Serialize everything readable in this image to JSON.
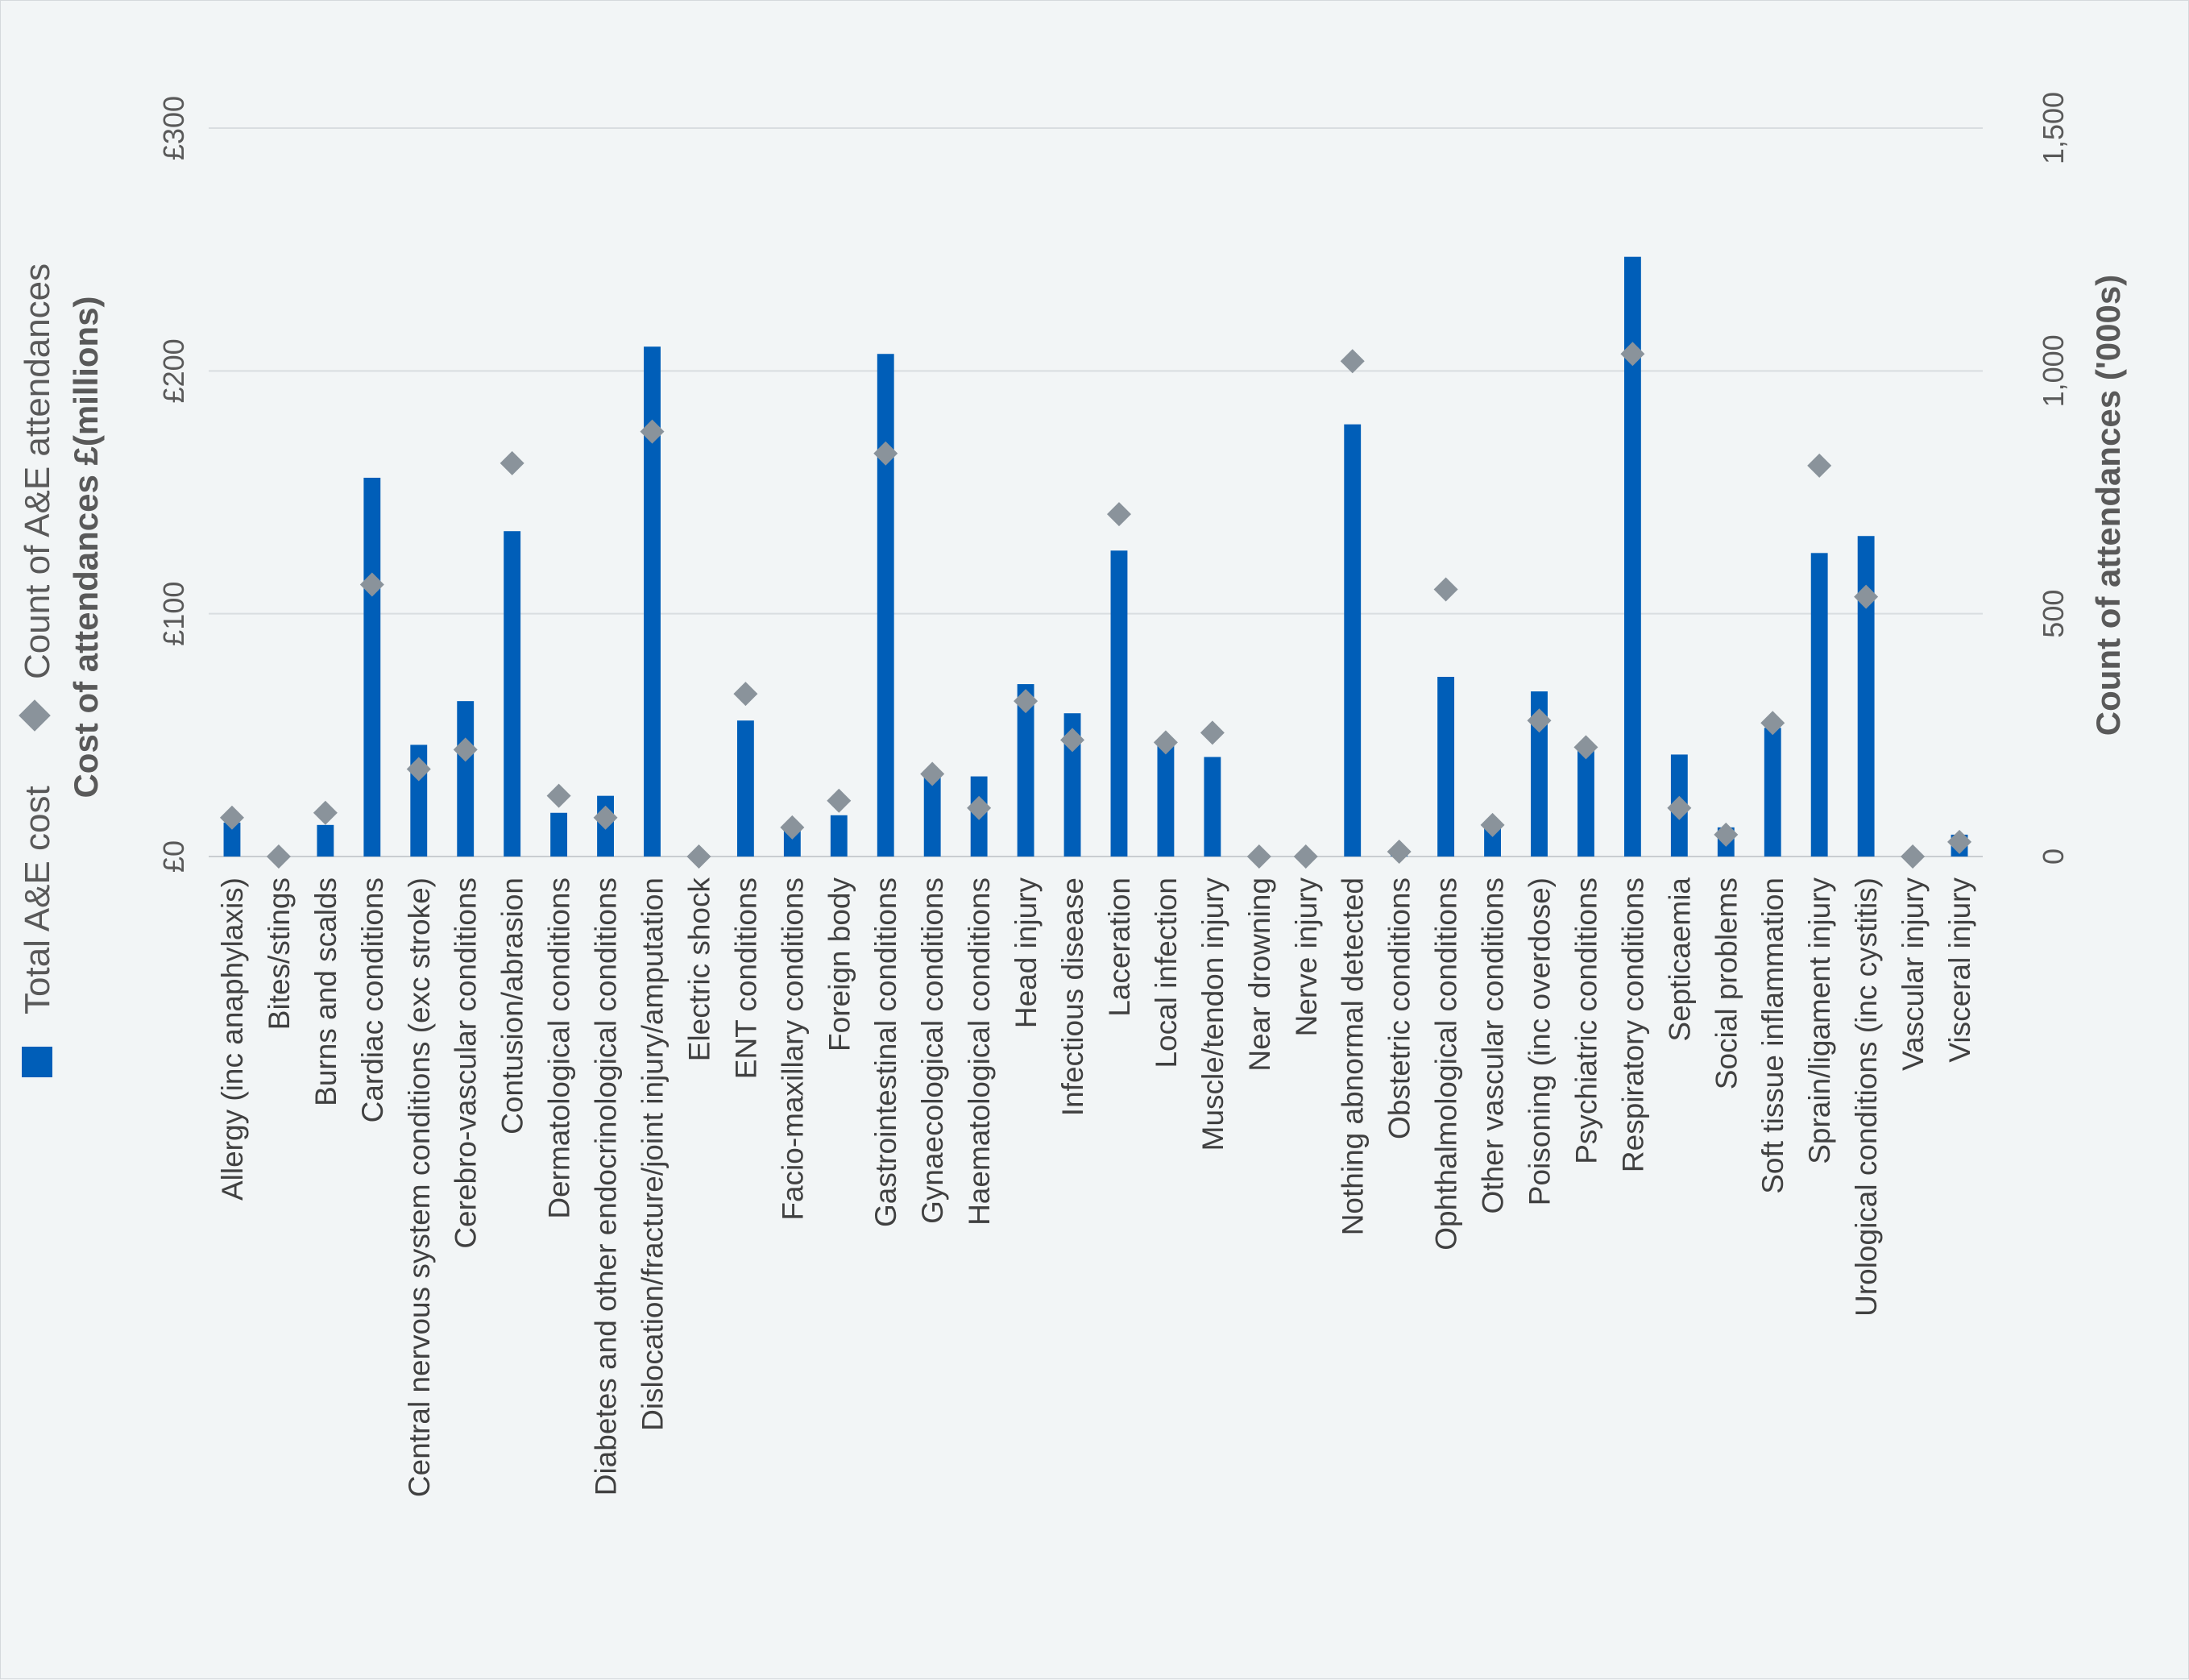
{
  "chart_data": {
    "type": "bar",
    "orientation": "rotated-90-ccw",
    "categories": [
      "Allergy (inc anaphylaxis)",
      "Bites/stings",
      "Burns and scalds",
      "Cardiac conditions",
      "Central nervous system conditions (exc stroke)",
      "Cerebro-vascular conditions",
      "Contusion/abrasion",
      "Dermatological conditions",
      "Diabetes and other endocrinological conditions",
      "Dislocation/fracture/joint injury/amputation",
      "Electric shock",
      "ENT conditions",
      "Facio-maxillary conditions",
      "Foreign body",
      "Gastrointestinal conditions",
      "Gynaecological conditions",
      "Haematological conditions",
      "Head injury",
      "Infectious disease",
      "Laceration",
      "Local infection",
      "Muscle/tendon injury",
      "Near drowning",
      "Nerve injury",
      "Nothing abnormal detected",
      "Obstetric conditions",
      "Ophthalmological  conditions",
      "Other vascular conditions",
      "Poisoning (inc overdose)",
      "Psychiatric conditions",
      "Respiratory conditions",
      "Septicaemia",
      "Social problems",
      "Soft tissue inflammation",
      "Sprain/ligament injury",
      "Urological conditions (inc cystitis)",
      "Vascular injury",
      "Visceral injury"
    ],
    "series": [
      {
        "name": "Total A&E cost",
        "axis": "primary",
        "kind": "bar",
        "color": "#005eb8",
        "values": [
          14,
          0.5,
          13,
          156,
          46,
          64,
          134,
          18,
          25,
          210,
          0.5,
          56,
          11,
          17,
          207,
          35,
          33,
          71,
          59,
          126,
          48,
          41,
          0.5,
          0.5,
          178,
          1,
          74,
          13,
          68,
          46,
          247,
          42,
          12,
          53,
          125,
          132,
          0.5,
          9
        ]
      },
      {
        "name": "Count of A&E attendances",
        "axis": "secondary",
        "kind": "marker",
        "color": "#8a939b",
        "values": [
          80,
          0,
          90,
          560,
          180,
          220,
          810,
          125,
          80,
          875,
          0,
          335,
          60,
          115,
          830,
          170,
          100,
          320,
          240,
          705,
          235,
          255,
          0,
          0,
          1020,
          10,
          550,
          65,
          280,
          225,
          1035,
          100,
          45,
          275,
          805,
          535,
          0,
          30
        ]
      }
    ],
    "ylabel": "Cost of attendances £(millions)",
    "y2label": "Count of attendances ('000s)",
    "ylim": [
      0,
      300
    ],
    "y2lim": [
      0,
      1500
    ],
    "yticks": [
      "£0",
      "£100",
      "£200",
      "£300"
    ],
    "y2ticks": [
      "0",
      "500",
      "1,000",
      "1,500"
    ],
    "grid": true,
    "legend": "left"
  }
}
